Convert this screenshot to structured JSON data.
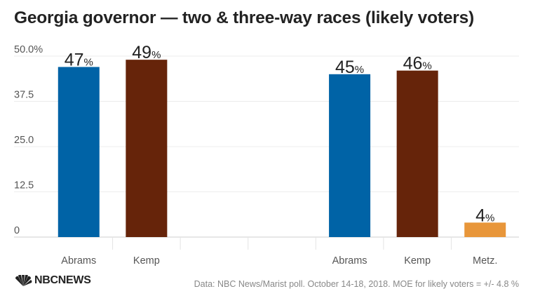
{
  "title": "Georgia governor — two & three-way races (likely voters)",
  "source": "Data: NBC News/Marist poll. October 14-18, 2018. MOE for likely voters = +/- 4.8 %",
  "logo": {
    "text": "NBCNEWS",
    "icon": "nbc-peacock-icon"
  },
  "chart_data": {
    "type": "bar",
    "title": "Georgia governor — two & three-way races (likely voters)",
    "ylim": [
      0,
      50
    ],
    "yticks": [
      0,
      12.5,
      25,
      37.5,
      50
    ],
    "ytick_labels": [
      "0",
      "12.5",
      "25.0",
      "37.5",
      "50.0%"
    ],
    "grid": true,
    "value_suffix": "%",
    "slots": [
      "Abrams",
      "Kemp",
      "",
      "",
      "Abrams",
      "Kemp",
      "Metz."
    ],
    "bars": [
      {
        "category": "Abrams",
        "value": 47,
        "label": "47",
        "color": "#0063a6",
        "slot": 0
      },
      {
        "category": "Kemp",
        "value": 49,
        "label": "49",
        "color": "#66240a",
        "slot": 1
      },
      {
        "category": "Abrams",
        "value": 45,
        "label": "45",
        "color": "#0063a6",
        "slot": 4
      },
      {
        "category": "Kemp",
        "value": 46,
        "label": "46",
        "color": "#66240a",
        "slot": 5
      },
      {
        "category": "Metz.",
        "value": 4,
        "label": "4",
        "color": "#e8963a",
        "slot": 6
      }
    ]
  }
}
